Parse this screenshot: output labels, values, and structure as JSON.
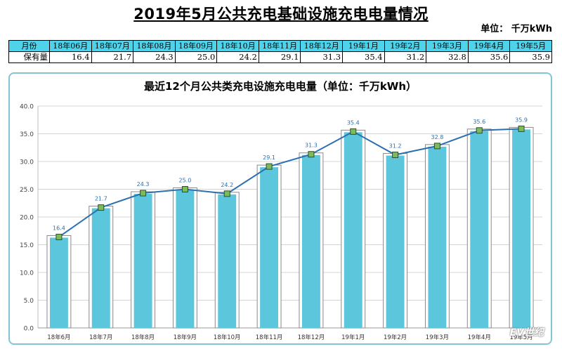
{
  "page_title": "2019年5月公共充电基础设施充电电量情况",
  "unit_note": "单位：  千万kWh",
  "table": {
    "row_header_month": "月份",
    "row_header_value": "保有量",
    "months": [
      "18年06月",
      "18年07月",
      "18年08月",
      "18年09月",
      "18年10月",
      "18年11月",
      "18年12月",
      "19年1月",
      "19年2月",
      "19年3月",
      "19年4月",
      "19年5月"
    ],
    "values": [
      "16.4",
      "21.7",
      "24.3",
      "25.0",
      "24.2",
      "29.1",
      "31.3",
      "35.4",
      "31.2",
      "32.8",
      "35.6",
      "35.9"
    ]
  },
  "chart_data": {
    "type": "bar",
    "title": "最近12个月公共类充电设施充电电量（单位：千万kWh）",
    "categories": [
      "18年6月",
      "18年7月",
      "18年8月",
      "18年9月",
      "18年10月",
      "18年11月",
      "18年12月",
      "19年1月",
      "19年2月",
      "19年3月",
      "19年4月",
      "19年5月"
    ],
    "values": [
      16.4,
      21.7,
      24.3,
      25.0,
      24.2,
      29.1,
      31.3,
      35.4,
      31.2,
      32.8,
      35.6,
      35.9
    ],
    "data_labels": [
      "16.4",
      "21.7",
      "24.3",
      "25.0",
      "24.2",
      "29.1",
      "31.3",
      "35.4",
      "31.2",
      "32.8",
      "35.6",
      "35.9"
    ],
    "overlay_line": true,
    "ylim": [
      0,
      40
    ],
    "yticks": [
      "0.0",
      "5.0",
      "10.0",
      "15.0",
      "20.0",
      "25.0",
      "30.0",
      "35.0",
      "40.0"
    ],
    "grid": true,
    "xlabel": "",
    "ylabel": "",
    "colors": {
      "bar": "#5cc6dc",
      "line": "#2c6fb0",
      "marker": "#7dba5c",
      "grid": "#d4d4d4"
    }
  },
  "watermark": "EV世纪"
}
